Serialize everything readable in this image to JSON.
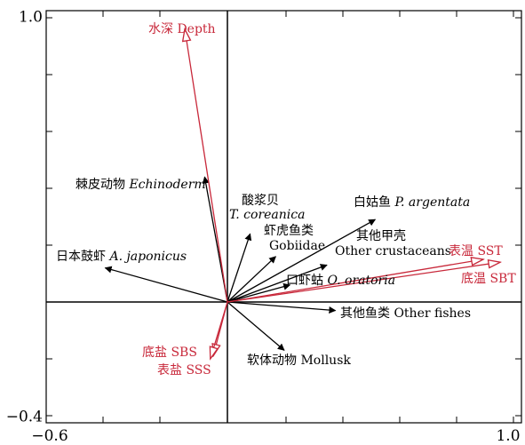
{
  "chart_data": {
    "type": "biplot",
    "xlim": [
      -0.6,
      1.0
    ],
    "ylim": [
      -0.4,
      1.0
    ],
    "x_tick_labels": [
      "−0.6",
      "1.0"
    ],
    "y_tick_labels": [
      "1.0",
      "−0.4"
    ],
    "colors": {
      "species": "#000000",
      "environment": "#c8283a"
    },
    "species": [
      {
        "label_cn": "棘皮动物",
        "label_en": "Echinoderm",
        "x": -0.08,
        "y": 0.44
      },
      {
        "label_cn": "酸浆贝",
        "label_en": "T. coreanica",
        "x": 0.08,
        "y": 0.24
      },
      {
        "label_cn": "虾虎鱼类",
        "label_en": "Gobiidae",
        "x": 0.17,
        "y": 0.16
      },
      {
        "label_cn": "白姑鱼",
        "label_en": "P. argentata",
        "x": 0.52,
        "y": 0.29
      },
      {
        "label_cn": "其他甲壳",
        "label_en": "Other crustaceans",
        "x": 0.35,
        "y": 0.13
      },
      {
        "label_cn": "日本鼓虾",
        "label_en": "A. japonicus",
        "x": -0.43,
        "y": 0.12
      },
      {
        "label_cn": "口虾蛄",
        "label_en": "O. oratoria",
        "x": 0.22,
        "y": 0.06
      },
      {
        "label_cn": "其他鱼类",
        "label_en": "Other fishes",
        "x": 0.38,
        "y": -0.03
      },
      {
        "label_cn": "软体动物",
        "label_en": "Mollusk",
        "x": 0.2,
        "y": -0.17
      }
    ],
    "environment": [
      {
        "label": "水深 Depth",
        "x": -0.15,
        "y": 0.96
      },
      {
        "label": "表温 SST",
        "x": 0.9,
        "y": 0.15
      },
      {
        "label": "底温 SBT",
        "x": 0.96,
        "y": 0.14
      },
      {
        "label": "底盐 SBS",
        "x": -0.05,
        "y": -0.19
      },
      {
        "label": "表盐 SSS",
        "x": -0.06,
        "y": -0.2
      }
    ]
  }
}
